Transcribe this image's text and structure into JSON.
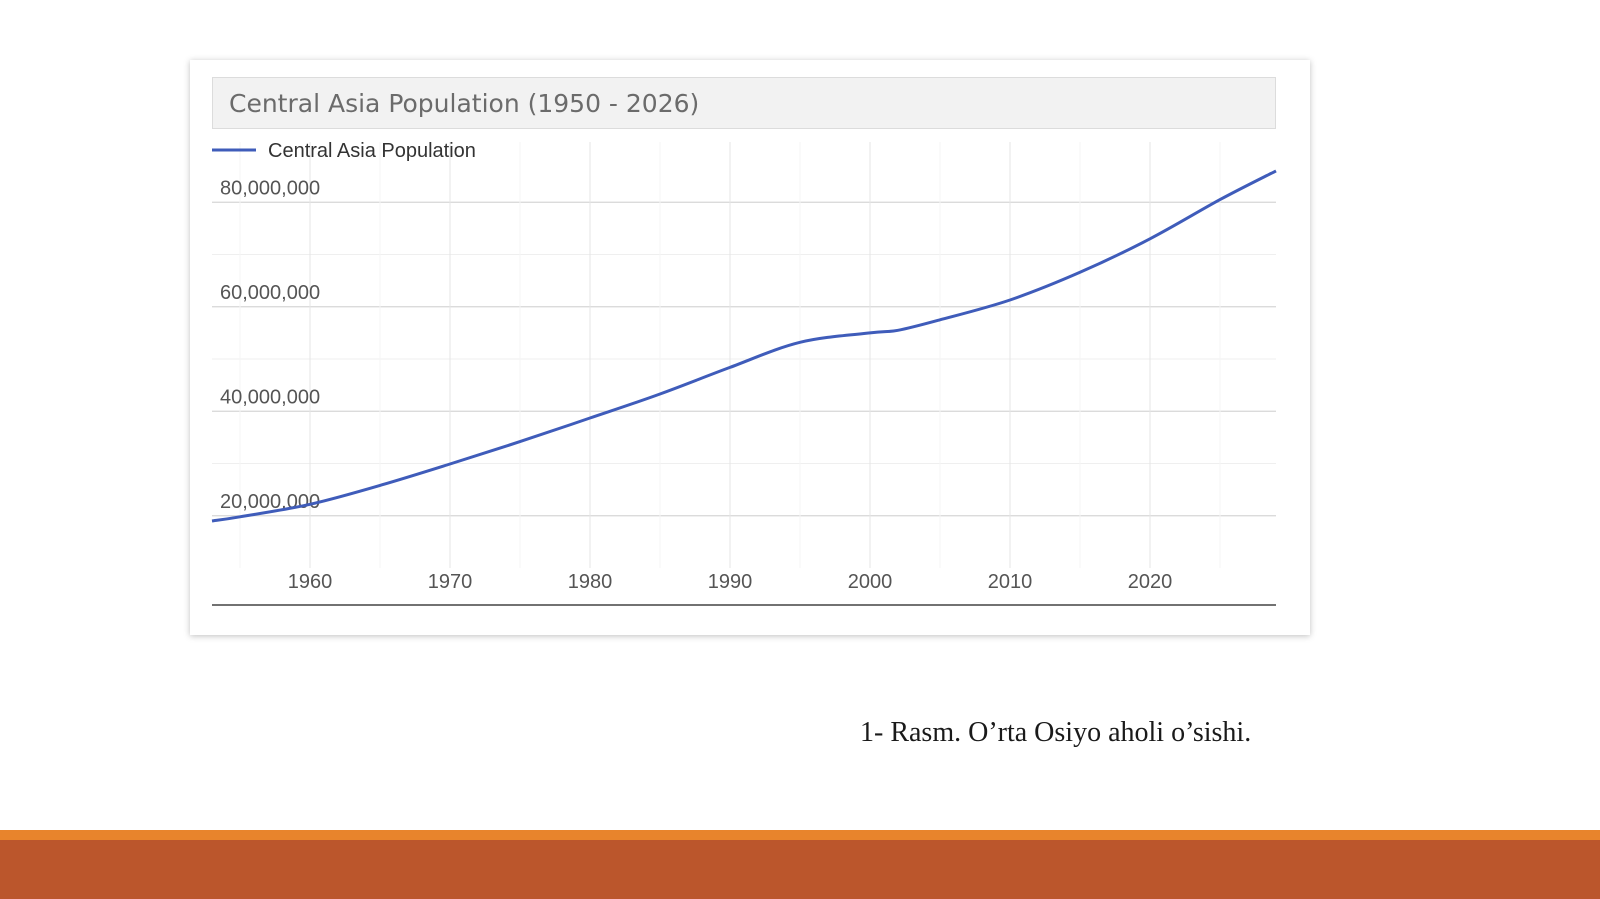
{
  "colors": {
    "line": "#3f5cba",
    "footer_band": "#bb562c",
    "footer_accent": "#e8842c"
  },
  "chart_data": {
    "type": "line",
    "title": "Central Asia Population (1950 - 2026)",
    "xlabel": "",
    "ylabel": "",
    "xlim": [
      1953,
      2029
    ],
    "ylim": [
      10000000,
      90000000
    ],
    "x_ticks": [
      1960,
      1970,
      1980,
      1990,
      2000,
      2010,
      2020
    ],
    "y_ticks": [
      20000000,
      40000000,
      60000000,
      80000000
    ],
    "x_tick_labels": [
      "1960",
      "1970",
      "1980",
      "1990",
      "2000",
      "2010",
      "2020"
    ],
    "y_tick_labels": [
      "20,000,000",
      "40,000,000",
      "60,000,000",
      "80,000,000"
    ],
    "grid": true,
    "legend_position": "top-left",
    "series": [
      {
        "name": "Central Asia Population",
        "x": [
          1953,
          1955,
          1960,
          1965,
          1970,
          1975,
          1980,
          1985,
          1990,
          1995,
          2000,
          2002,
          2005,
          2010,
          2015,
          2020,
          2025,
          2029
        ],
        "values": [
          19000000,
          19800000,
          22200000,
          25800000,
          29900000,
          34200000,
          38700000,
          43300000,
          48400000,
          53200000,
          55000000,
          55500000,
          57500000,
          61300000,
          66600000,
          73000000,
          80500000,
          86000000
        ]
      }
    ]
  },
  "caption": "1- Rasm. O’rta Osiyo aholi o’sishi."
}
